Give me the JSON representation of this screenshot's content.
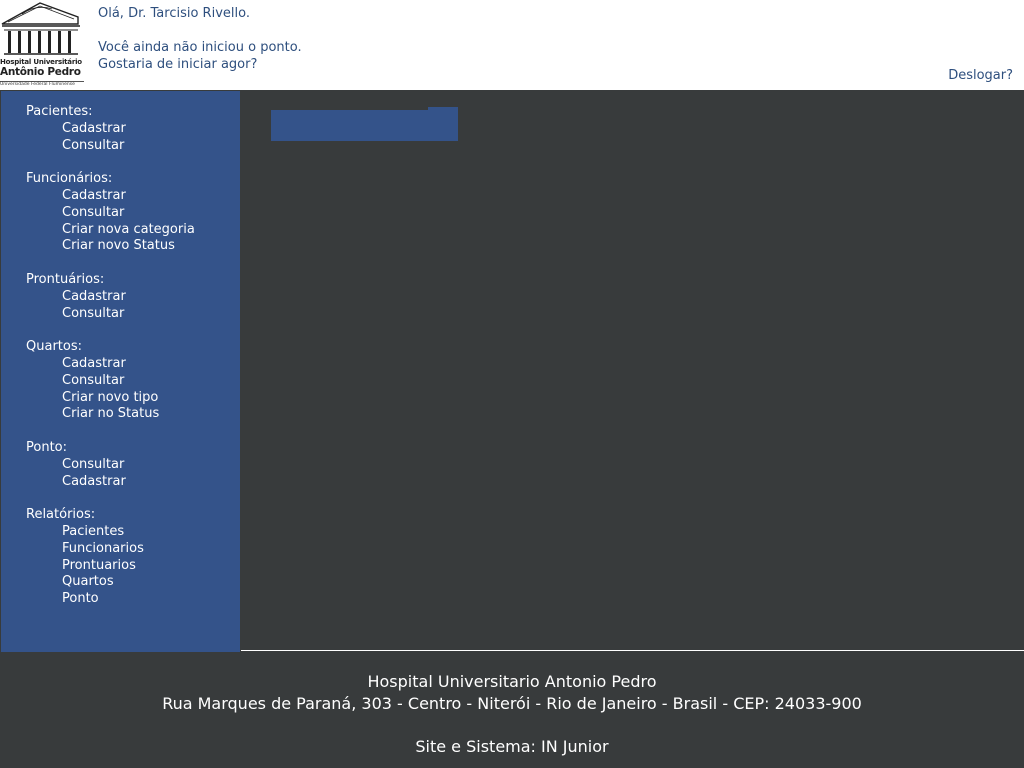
{
  "header": {
    "logo": {
      "line1": "Hospital Universitário",
      "line2": "Antônio Pedro",
      "line3": "Universidade Federal Fluminense",
      "icon": "hospital-building-icon"
    },
    "greeting": "Olá, Dr. Tarcisio Rivello.",
    "message_line1": "Você ainda não iniciou o ponto.",
    "message_line2": "Gostaria de iniciar agor?",
    "logout_label": "Deslogar?"
  },
  "sidebar": {
    "sections": [
      {
        "title": "Pacientes:",
        "items": [
          "Cadastrar",
          "Consultar"
        ]
      },
      {
        "title": "Funcionários:",
        "items": [
          "Cadastrar",
          "Consultar",
          "Criar nova categoria",
          "Criar novo Status"
        ]
      },
      {
        "title": "Prontuários:",
        "items": [
          "Cadastrar",
          "Consultar"
        ]
      },
      {
        "title": "Quartos:",
        "items": [
          "Cadastrar",
          "Consultar",
          "Criar novo tipo",
          "Criar no Status"
        ]
      },
      {
        "title": "Ponto:",
        "items": [
          "Consultar",
          "Cadastrar"
        ]
      },
      {
        "title": "Relatórios:",
        "items": [
          "Pacientes",
          "Funcionarios",
          "Prontuarios",
          "Quartos",
          "Ponto"
        ]
      }
    ]
  },
  "footer": {
    "line1": "Hospital Universitario Antonio Pedro",
    "line2": "Rua Marques de Paraná, 303 - Centro - Niterói - Rio de Janeiro - Brasil - CEP: 24033-900",
    "line3": "Site e Sistema: IN Junior"
  },
  "colors": {
    "header_text": "#2e4f7e",
    "sidebar_bg": "#34538a",
    "page_bg": "#383b3c"
  }
}
